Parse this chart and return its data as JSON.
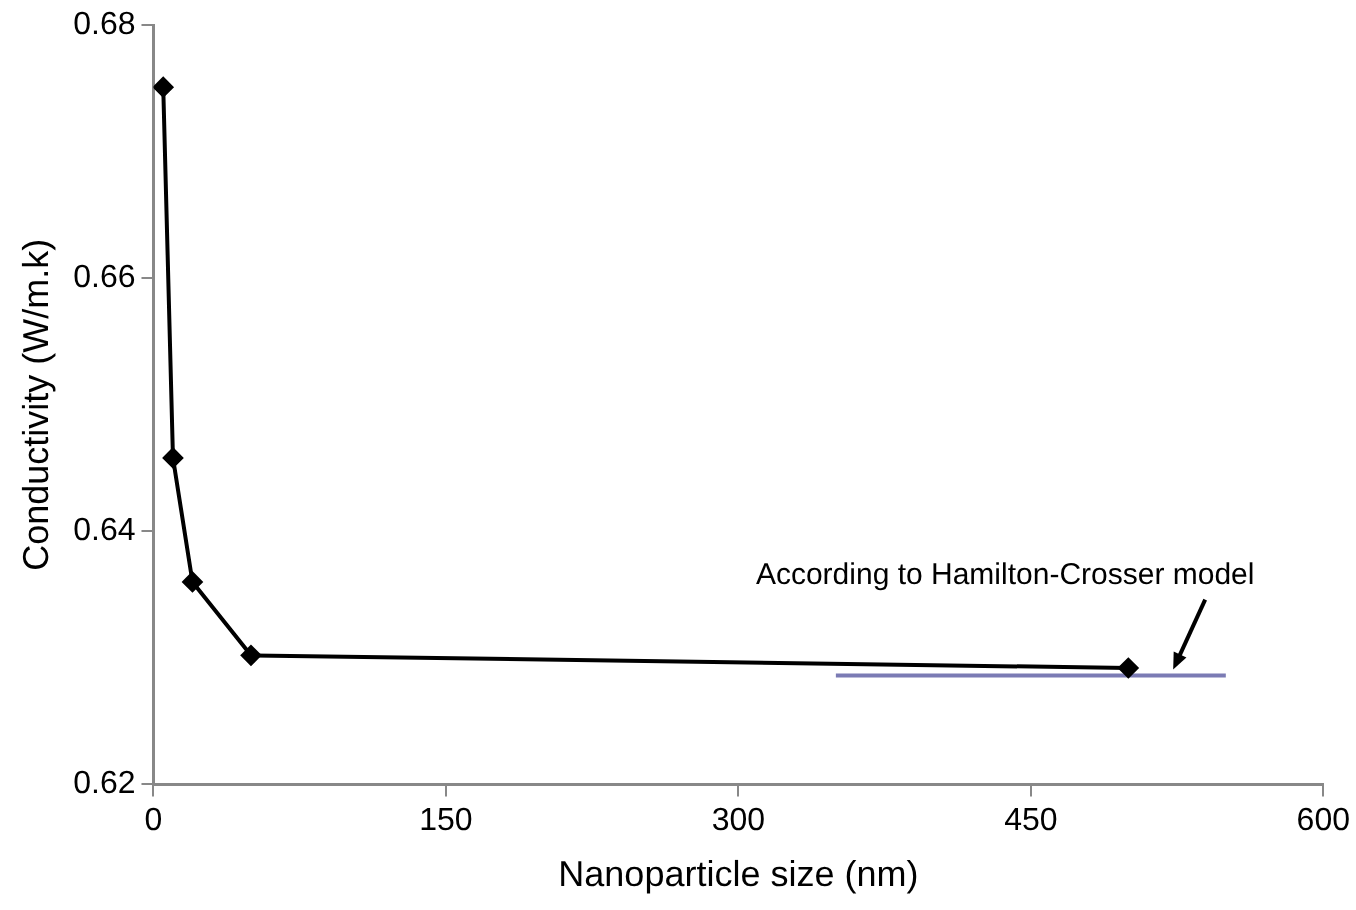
{
  "chart_data": {
    "type": "line",
    "xlabel": "Nanoparticle size (nm)",
    "ylabel": "Conductivity (W/m.k)",
    "xlim": [
      0,
      600
    ],
    "xticks": [
      0,
      150,
      300,
      450,
      600
    ],
    "ylim": [
      0.62,
      0.68
    ],
    "yticks": [
      0.62,
      0.64,
      0.66,
      0.68
    ],
    "grid": false,
    "legend": false,
    "marker": "diamond",
    "line_style": "solid",
    "series": [
      {
        "color": "#000000",
        "x": [
          5,
          10,
          20,
          50,
          500
        ],
        "values": [
          0.6751,
          0.6458,
          0.636,
          0.6302,
          0.6292
        ]
      },
      {
        "color": "#7b7bb4",
        "x": [
          350,
          550
        ],
        "values": [
          0.6286,
          0.6286
        ],
        "marker": "none"
      }
    ],
    "annotations": [
      {
        "text": "According to Hamilton-Crosser model",
        "x": 523,
        "y": 0.6286
      }
    ]
  }
}
